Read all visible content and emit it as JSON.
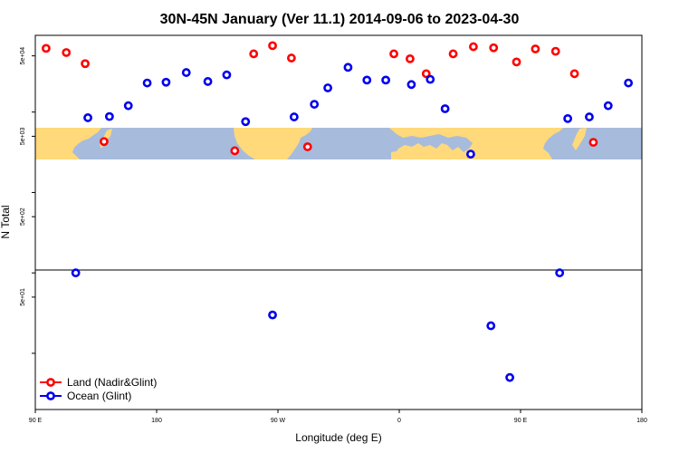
{
  "chart_data": {
    "type": "scatter",
    "title": "30N-45N January (Ver 11.1)   2014-09-06 to 2023-04-30",
    "xlabel": "Longitude (deg E)",
    "ylabel": "N Total",
    "x_ticks": [
      {
        "value": 90,
        "label": "90 E"
      },
      {
        "value": 180,
        "label": "180"
      },
      {
        "value": 270,
        "label": "90 W"
      },
      {
        "value": 360,
        "label": "0"
      },
      {
        "value": 450,
        "label": "90 E"
      },
      {
        "value": 540,
        "label": "180"
      }
    ],
    "xlim": [
      90,
      540
    ],
    "y_scale": "log",
    "ylim": [
      2,
      90000
    ],
    "y_ticks": [
      {
        "value": 50000,
        "label": "5e+04"
      },
      {
        "value": 5000,
        "label": "5e+03"
      },
      {
        "value": 500,
        "label": "5e+02"
      },
      {
        "value": 50,
        "label": "5e+01"
      }
    ],
    "y_minor_ticks": [
      10000,
      1000,
      100,
      10
    ],
    "legend_position": "bottom-left",
    "background_map": "world map strip 30N-45N (land yellow, ocean blue)",
    "colors": {
      "land": "#ff0000",
      "ocean": "#0000ee",
      "map_land": "#ffd97a",
      "map_ocean": "#a7bbdc"
    },
    "series": [
      {
        "name": "Land (Nadir&Glint)",
        "color": "#ff0000",
        "points": [
          {
            "x": 98,
            "y": 62000
          },
          {
            "x": 113,
            "y": 55000
          },
          {
            "x": 127,
            "y": 40000
          },
          {
            "x": 141,
            "y": 4300
          },
          {
            "x": 238,
            "y": 3300
          },
          {
            "x": 252,
            "y": 53000
          },
          {
            "x": 266,
            "y": 67000
          },
          {
            "x": 280,
            "y": 47000
          },
          {
            "x": 292,
            "y": 3700
          },
          {
            "x": 356,
            "y": 53000
          },
          {
            "x": 368,
            "y": 46000
          },
          {
            "x": 380,
            "y": 30000
          },
          {
            "x": 400,
            "y": 53000
          },
          {
            "x": 415,
            "y": 65000
          },
          {
            "x": 430,
            "y": 63000
          },
          {
            "x": 447,
            "y": 42000
          },
          {
            "x": 461,
            "y": 61000
          },
          {
            "x": 476,
            "y": 57000
          },
          {
            "x": 490,
            "y": 30000
          },
          {
            "x": 504,
            "y": 4200
          }
        ]
      },
      {
        "name": "Ocean (Glint)",
        "color": "#0000ee",
        "points": [
          {
            "x": 120,
            "y": 100
          },
          {
            "x": 129,
            "y": 8500
          },
          {
            "x": 145,
            "y": 8800
          },
          {
            "x": 159,
            "y": 12000
          },
          {
            "x": 173,
            "y": 23000
          },
          {
            "x": 187,
            "y": 23500
          },
          {
            "x": 202,
            "y": 31000
          },
          {
            "x": 218,
            "y": 24000
          },
          {
            "x": 232,
            "y": 29000
          },
          {
            "x": 246,
            "y": 7600
          },
          {
            "x": 266,
            "y": 30
          },
          {
            "x": 282,
            "y": 8700
          },
          {
            "x": 297,
            "y": 12500
          },
          {
            "x": 307,
            "y": 20000
          },
          {
            "x": 322,
            "y": 36000
          },
          {
            "x": 336,
            "y": 25000
          },
          {
            "x": 350,
            "y": 25000
          },
          {
            "x": 369,
            "y": 22000
          },
          {
            "x": 383,
            "y": 25500
          },
          {
            "x": 394,
            "y": 11000
          },
          {
            "x": 413,
            "y": 3000
          },
          {
            "x": 428,
            "y": 22
          },
          {
            "x": 442,
            "y": 5
          },
          {
            "x": 479,
            "y": 100
          },
          {
            "x": 485,
            "y": 8300
          },
          {
            "x": 501,
            "y": 8700
          },
          {
            "x": 515,
            "y": 12000
          },
          {
            "x": 530,
            "y": 23000
          }
        ]
      }
    ]
  }
}
